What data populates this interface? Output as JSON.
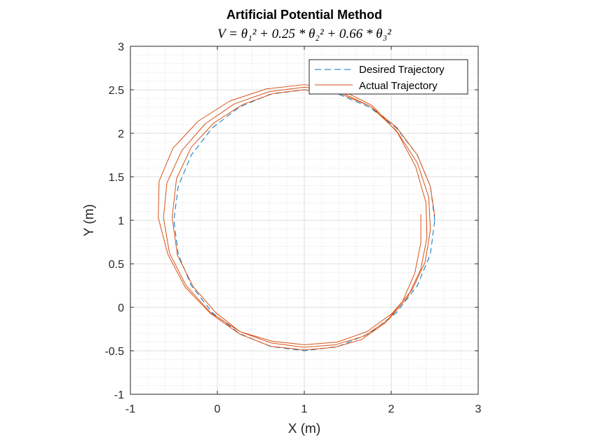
{
  "chart_data": {
    "type": "line",
    "title": "Artificial Potential Method",
    "subtitle": "V = θ₁² + 0.25 * θ₂² + 0.66 * θ₃²",
    "xlabel": "X (m)",
    "ylabel": "Y (m)",
    "xlim": [
      -1,
      3
    ],
    "ylim": [
      -1,
      3
    ],
    "xticks": [
      -1,
      0,
      1,
      2,
      3
    ],
    "yticks": [
      -1,
      -0.5,
      0,
      0.5,
      1,
      1.5,
      2,
      2.5,
      3
    ],
    "xtick_labels": [
      "-1",
      "0",
      "1",
      "2",
      "3"
    ],
    "ytick_labels": [
      "-1",
      "-0.5",
      "0",
      "0.5",
      "1",
      "1.5",
      "2",
      "2.5",
      "3"
    ],
    "grid": true,
    "minor_grid": true,
    "legend_position": "top-right",
    "series": [
      {
        "name": "Desired Trajectory",
        "style": "dashed",
        "color": "#0072BD",
        "x": [
          2.5,
          2.45,
          2.3,
          2.06,
          1.75,
          1.39,
          1.0,
          0.61,
          0.25,
          -0.06,
          -0.3,
          -0.45,
          -0.5,
          -0.45,
          -0.3,
          -0.06,
          0.25,
          0.61,
          1.0,
          1.39,
          1.75,
          2.06,
          2.3,
          2.45,
          2.5
        ],
        "y": [
          1.0,
          1.39,
          1.75,
          2.06,
          2.3,
          2.45,
          2.5,
          2.45,
          2.3,
          2.06,
          1.75,
          1.39,
          1.0,
          0.61,
          0.25,
          -0.06,
          -0.3,
          -0.45,
          -0.5,
          -0.45,
          -0.3,
          -0.06,
          0.25,
          0.61,
          1.0
        ]
      },
      {
        "name": "Actual Trajectory",
        "style": "solid",
        "color": "#D95319",
        "x": [
          2.5,
          2.45,
          2.3,
          2.06,
          1.76,
          1.4,
          1.0,
          0.65,
          0.29,
          -0.04,
          -0.3,
          -0.47,
          -0.52,
          -0.46,
          -0.28,
          -0.02,
          0.26,
          0.63,
          1.0,
          1.38,
          1.72,
          2.01,
          2.24,
          2.39,
          2.45,
          2.43,
          2.3,
          2.06,
          1.76,
          1.4,
          1.0,
          0.6,
          0.2,
          -0.14,
          -0.41,
          -0.58,
          -0.62,
          -0.55,
          -0.36,
          -0.08,
          0.26,
          0.62,
          1.0,
          1.36,
          1.69,
          1.97,
          2.19,
          2.34,
          2.41,
          2.4,
          2.28,
          2.07,
          1.78,
          1.42,
          1.0,
          0.56,
          0.14,
          -0.22,
          -0.51,
          -0.67,
          -0.68,
          -0.57,
          -0.37,
          -0.08,
          0.26,
          0.62,
          1.0,
          1.35,
          1.66,
          1.93,
          2.13,
          2.27,
          2.34,
          2.34
        ],
        "y": [
          1.05,
          1.39,
          1.75,
          2.07,
          2.31,
          2.46,
          2.5,
          2.46,
          2.33,
          2.12,
          1.84,
          1.48,
          1.03,
          0.6,
          0.24,
          -0.06,
          -0.28,
          -0.39,
          -0.43,
          -0.4,
          -0.28,
          -0.07,
          0.2,
          0.52,
          0.89,
          1.27,
          1.66,
          2.03,
          2.31,
          2.48,
          2.53,
          2.48,
          2.34,
          2.11,
          1.8,
          1.43,
          1.03,
          0.62,
          0.25,
          -0.06,
          -0.28,
          -0.41,
          -0.46,
          -0.43,
          -0.33,
          -0.14,
          0.12,
          0.44,
          0.8,
          1.2,
          1.62,
          2.01,
          2.32,
          2.5,
          2.56,
          2.51,
          2.37,
          2.14,
          1.83,
          1.45,
          1.03,
          0.61,
          0.23,
          -0.07,
          -0.31,
          -0.45,
          -0.49,
          -0.46,
          -0.37,
          -0.18,
          0.07,
          0.39,
          0.74,
          1.07
        ]
      }
    ]
  }
}
